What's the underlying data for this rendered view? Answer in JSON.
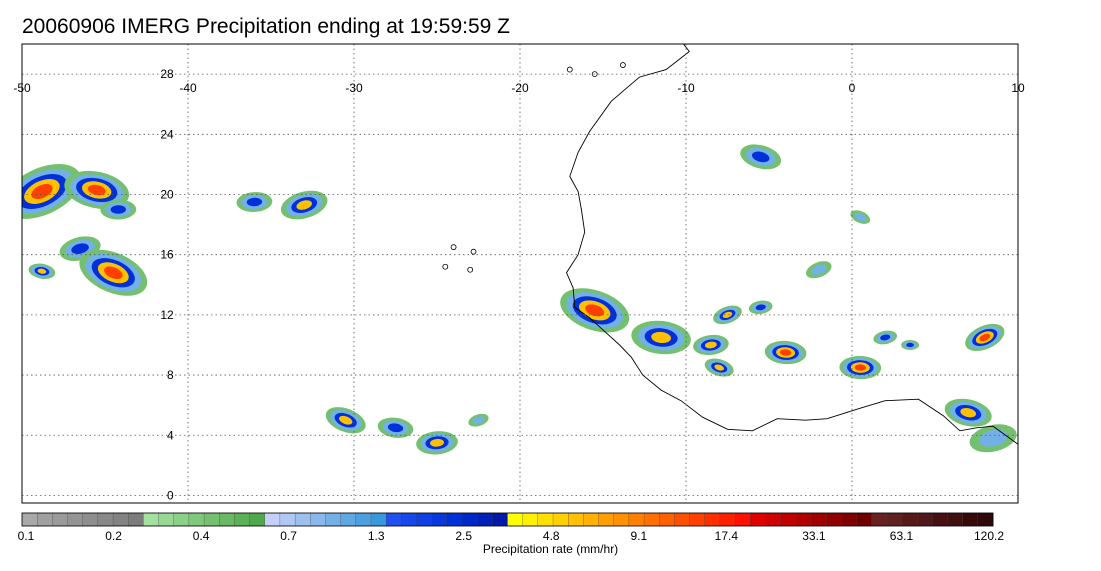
{
  "title": "20060906 IMERG Precipitation ending at 19:59:59 Z",
  "map": {
    "lon_range": [
      -50,
      10
    ],
    "lat_range": [
      -0.5,
      30
    ],
    "lon_ticks": [
      -50,
      -40,
      -30,
      -20,
      -10,
      0,
      10
    ],
    "lon_tick_labels": [
      "-50",
      "-40",
      "-30",
      "-20",
      "-10",
      "0",
      "10"
    ],
    "lat_ticks": [
      0,
      4,
      8,
      12,
      16,
      20,
      24,
      28
    ],
    "lat_tick_labels": [
      "0",
      "4",
      "8",
      "12",
      "16",
      "20",
      "24",
      "28"
    ],
    "grid": true,
    "tick_label_lon": -40.5
  },
  "colorbar": {
    "title": "Precipitation rate (mm/hr)",
    "labels": [
      "0.1",
      "0.2",
      "0.4",
      "0.7",
      "1.3",
      "2.5",
      "4.8",
      "9.1",
      "17.4",
      "33.1",
      "63.1",
      "120.2"
    ],
    "colors": [
      "#a8a8a8",
      "#a0a0a0",
      "#9a9a9a",
      "#949494",
      "#8e8e8e",
      "#888888",
      "#828282",
      "#7c7c7c",
      "#a4e0a0",
      "#98d894",
      "#8cd088",
      "#80c87c",
      "#74c070",
      "#68b864",
      "#5cb058",
      "#50a84c",
      "#c4d0f8",
      "#b0c8f4",
      "#9cc0f0",
      "#88b8ec",
      "#74b0e8",
      "#60a8e4",
      "#4ca0e0",
      "#3898dc",
      "#2050f0",
      "#1848ea",
      "#1040e4",
      "#0838de",
      "#0030d8",
      "#0028c8",
      "#0020b8",
      "#0018a8",
      "#ffff00",
      "#fff000",
      "#ffe000",
      "#ffd000",
      "#ffc000",
      "#ffb000",
      "#ffa000",
      "#ff9000",
      "#ff8000",
      "#ff7000",
      "#ff6000",
      "#ff5000",
      "#ff4000",
      "#ff3000",
      "#ff2000",
      "#ff1000",
      "#e00000",
      "#d00000",
      "#c00000",
      "#b00000",
      "#a00000",
      "#900000",
      "#800000",
      "#700000",
      "#682020",
      "#602020",
      "#581818",
      "#501818",
      "#481010",
      "#401010",
      "#380808",
      "#300808"
    ]
  },
  "precip_cells": [
    {
      "lon": -48.8,
      "lat": 20.2,
      "size": 2.8,
      "level": 4
    },
    {
      "lon": -45.5,
      "lat": 20.3,
      "size": 2.2,
      "level": 4
    },
    {
      "lon": -44.2,
      "lat": 19.0,
      "size": 1.2,
      "level": 2
    },
    {
      "lon": -46.5,
      "lat": 16.4,
      "size": 1.4,
      "level": 2
    },
    {
      "lon": -44.5,
      "lat": 14.8,
      "size": 2.4,
      "level": 4
    },
    {
      "lon": -48.8,
      "lat": 14.9,
      "size": 0.9,
      "level": 3
    },
    {
      "lon": -36.0,
      "lat": 19.5,
      "size": 1.2,
      "level": 2
    },
    {
      "lon": -33.0,
      "lat": 19.3,
      "size": 1.6,
      "level": 3
    },
    {
      "lon": -30.5,
      "lat": 5.0,
      "size": 1.4,
      "level": 3
    },
    {
      "lon": -27.5,
      "lat": 4.5,
      "size": 1.2,
      "level": 2
    },
    {
      "lon": -25.0,
      "lat": 3.5,
      "size": 1.4,
      "level": 3
    },
    {
      "lon": -22.5,
      "lat": 5.0,
      "size": 0.7,
      "level": 1
    },
    {
      "lon": -15.5,
      "lat": 12.3,
      "size": 2.4,
      "level": 4
    },
    {
      "lon": -11.5,
      "lat": 10.5,
      "size": 2.0,
      "level": 3
    },
    {
      "lon": -8.5,
      "lat": 10.0,
      "size": 1.2,
      "level": 3
    },
    {
      "lon": -7.5,
      "lat": 12.0,
      "size": 1.0,
      "level": 3
    },
    {
      "lon": -8.0,
      "lat": 8.5,
      "size": 1.0,
      "level": 3
    },
    {
      "lon": -4.0,
      "lat": 9.5,
      "size": 1.4,
      "level": 4
    },
    {
      "lon": -5.5,
      "lat": 12.5,
      "size": 0.8,
      "level": 2
    },
    {
      "lon": -2.0,
      "lat": 15.0,
      "size": 0.9,
      "level": 1
    },
    {
      "lon": -5.5,
      "lat": 22.5,
      "size": 1.4,
      "level": 2
    },
    {
      "lon": 0.5,
      "lat": 8.5,
      "size": 1.4,
      "level": 4
    },
    {
      "lon": 2.0,
      "lat": 10.5,
      "size": 0.8,
      "level": 2
    },
    {
      "lon": 8.0,
      "lat": 10.5,
      "size": 1.4,
      "level": 4
    },
    {
      "lon": 7.0,
      "lat": 5.5,
      "size": 1.6,
      "level": 3
    },
    {
      "lon": 3.5,
      "lat": 10.0,
      "size": 0.6,
      "level": 2
    },
    {
      "lon": 8.5,
      "lat": 3.8,
      "size": 1.6,
      "level": 1
    },
    {
      "lon": 0.5,
      "lat": 18.5,
      "size": 0.7,
      "level": 1
    }
  ]
}
